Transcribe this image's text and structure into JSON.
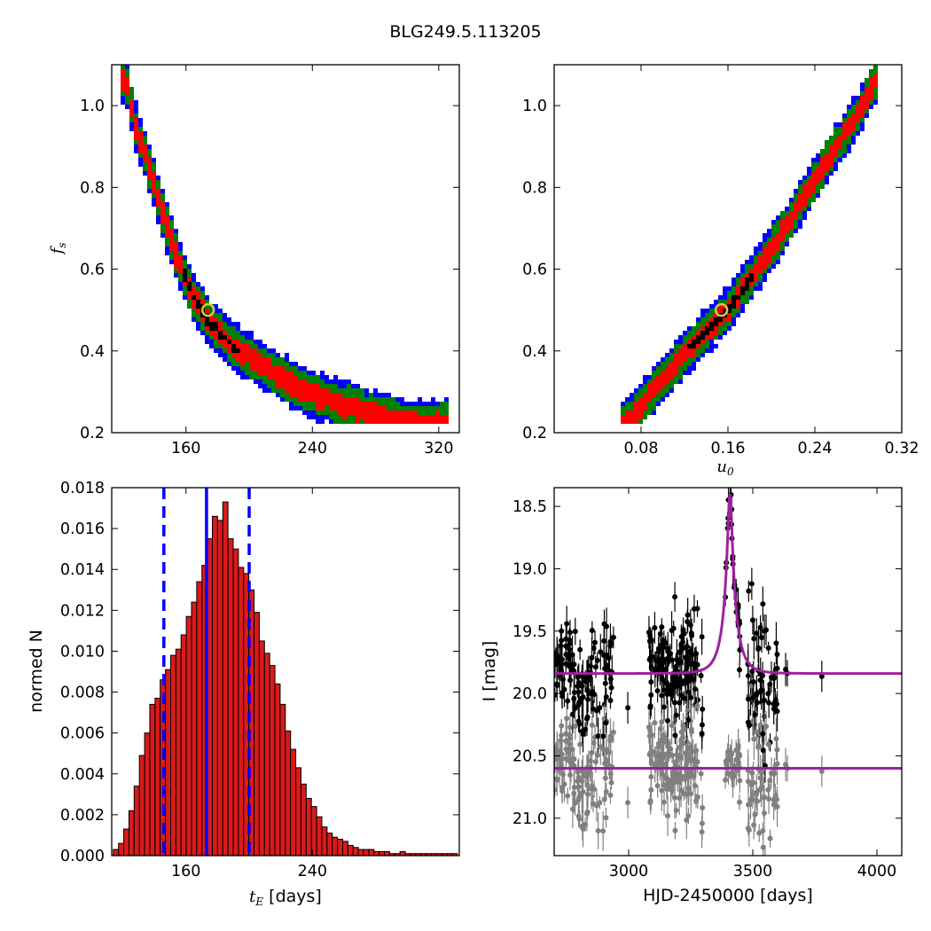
{
  "figure_title": "BLG249.5.113205",
  "colors": {
    "blue": "#0000ff",
    "green": "#008000",
    "red": "#ff0000",
    "black": "#000000",
    "marker": "#d4c84a",
    "bar": "#d91a1a",
    "model": "#a020a0",
    "residual": "#808080"
  },
  "chart_data": [
    {
      "type": "heatmap",
      "panel": "tE-fs",
      "xlabel": "",
      "ylabel": "f_s",
      "xlim": [
        113,
        333
      ],
      "ylim": [
        0.2,
        1.1
      ],
      "xticks": [
        160,
        240,
        320
      ],
      "xtick_labels": [
        "160",
        "240",
        "320"
      ],
      "yticks": [
        0.2,
        0.4,
        0.6,
        0.8,
        1.0
      ],
      "ytick_labels": [
        "0.2",
        "0.4",
        "0.6",
        "0.8",
        "1.0"
      ],
      "ridge": [
        [
          122,
          1.06
        ],
        [
          128,
          0.95
        ],
        [
          136,
          0.86
        ],
        [
          145,
          0.74
        ],
        [
          155,
          0.62
        ],
        [
          165,
          0.53
        ],
        [
          175,
          0.47
        ],
        [
          190,
          0.41
        ],
        [
          210,
          0.36
        ],
        [
          235,
          0.3
        ],
        [
          265,
          0.26
        ],
        [
          300,
          0.22
        ],
        [
          325,
          0.22
        ]
      ],
      "contour_levels": [
        "blue",
        "green",
        "red",
        "black"
      ],
      "best_fit": {
        "x": 174,
        "y": 0.5
      }
    },
    {
      "type": "heatmap",
      "panel": "u0-fs",
      "xlabel": "u_0",
      "ylabel": "",
      "xlim": [
        0.0,
        0.32
      ],
      "ylim": [
        0.2,
        1.1
      ],
      "xticks": [
        0.08,
        0.16,
        0.24,
        0.32
      ],
      "xtick_labels": [
        "0.08",
        "0.16",
        "0.24",
        "0.32"
      ],
      "yticks": [
        0.2,
        0.4,
        0.6,
        0.8,
        1.0
      ],
      "ytick_labels": [
        "0.2",
        "0.4",
        "0.6",
        "0.8",
        "1.0"
      ],
      "ridge": [
        [
          0.065,
          0.22
        ],
        [
          0.1,
          0.33
        ],
        [
          0.13,
          0.42
        ],
        [
          0.16,
          0.5
        ],
        [
          0.19,
          0.61
        ],
        [
          0.22,
          0.73
        ],
        [
          0.25,
          0.86
        ],
        [
          0.28,
          0.98
        ],
        [
          0.295,
          1.06
        ]
      ],
      "contour_levels": [
        "blue",
        "green",
        "red",
        "black"
      ],
      "best_fit": {
        "x": 0.154,
        "y": 0.5
      }
    },
    {
      "type": "bar",
      "panel": "tE-histogram",
      "xlabel": "[days]",
      "xlabel_math": "t_E",
      "ylabel": "normed N",
      "xlim": [
        113,
        333
      ],
      "ylim": [
        0.0,
        0.018
      ],
      "xticks": [
        160,
        240
      ],
      "xtick_labels": [
        "160",
        "240"
      ],
      "yticks": [
        0.0,
        0.002,
        0.004,
        0.006,
        0.008,
        0.01,
        0.012,
        0.014,
        0.016,
        0.018
      ],
      "ytick_labels": [
        "0.000",
        "0.002",
        "0.004",
        "0.006",
        "0.008",
        "0.010",
        "0.012",
        "0.014",
        "0.016",
        "0.018"
      ],
      "bin_start": 114,
      "bin_width": 3.3,
      "values": [
        0.0003,
        0.0006,
        0.0013,
        0.0022,
        0.0034,
        0.0049,
        0.006,
        0.0074,
        0.0077,
        0.0086,
        0.0091,
        0.0098,
        0.0101,
        0.0108,
        0.0117,
        0.0124,
        0.0134,
        0.0142,
        0.0155,
        0.0166,
        0.0164,
        0.0173,
        0.0155,
        0.015,
        0.0141,
        0.0138,
        0.013,
        0.0119,
        0.0105,
        0.0099,
        0.0093,
        0.0084,
        0.0074,
        0.0061,
        0.0052,
        0.0043,
        0.0035,
        0.0028,
        0.0024,
        0.0019,
        0.0014,
        0.0011,
        0.0009,
        0.0008,
        0.0007,
        0.0005,
        0.0004,
        0.0003,
        0.0003,
        0.0003,
        0.0002,
        0.0002,
        0.0002,
        0.0001,
        0.0001,
        0.0002,
        0.0001,
        0.0001,
        0.0001,
        0.0001,
        0.0001,
        0.0001,
        0.0001,
        0.0001,
        0.0001,
        0.0001
      ],
      "vlines": [
        {
          "x": 146,
          "style": "dashed"
        },
        {
          "x": 173,
          "style": "solid"
        },
        {
          "x": 200,
          "style": "dashed"
        }
      ]
    },
    {
      "type": "scatter",
      "panel": "light-curve",
      "xlabel": "HJD-2450000 [days]",
      "ylabel": "I [mag]",
      "xlim": [
        2700,
        4100
      ],
      "ylim": [
        21.3,
        18.35
      ],
      "xticks": [
        3000,
        3500,
        4000
      ],
      "xtick_labels": [
        "3000",
        "3500",
        "4000"
      ],
      "yticks": [
        18.5,
        19.0,
        19.5,
        20.0,
        20.5,
        21.0
      ],
      "ytick_labels": [
        "18.5",
        "19.0",
        "19.5",
        "20.0",
        "20.5",
        "21.0"
      ],
      "model": {
        "t0": 3408,
        "tE": 174,
        "u0": 0.154,
        "fs": 0.5,
        "baseline": 19.84
      },
      "residual_offset": 20.6
    }
  ]
}
